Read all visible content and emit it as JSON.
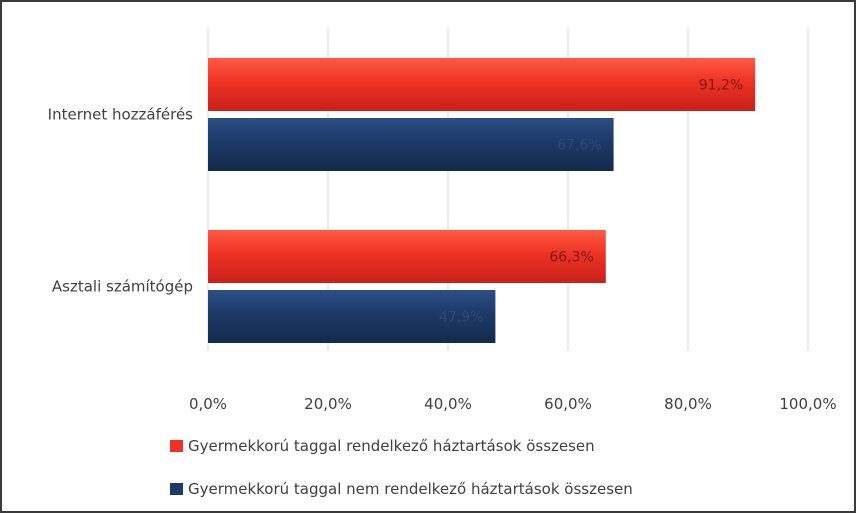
{
  "chart_data": {
    "type": "bar",
    "orientation": "horizontal",
    "categories": [
      "Internet hozzáférés",
      "Asztali számítógép"
    ],
    "series": [
      {
        "name": "Gyermekkorú taggal rendelkező háztartások összesen",
        "values": [
          91.2,
          66.3
        ],
        "labels": [
          "91,2%",
          "66,3%"
        ],
        "color": "#ee3224",
        "label_color": "#7a1a12"
      },
      {
        "name": "Gyermekkorú taggal nem rendelkező háztartások összesen",
        "values": [
          67.6,
          47.9
        ],
        "labels": [
          "67,6%",
          "47,9%"
        ],
        "color": "#1c3a68",
        "label_color": "#2c4a78"
      }
    ],
    "xlim": [
      0,
      100
    ],
    "xticks": [
      0,
      20,
      40,
      60,
      80,
      100
    ],
    "xtick_labels": [
      "0,0%",
      "20,0%",
      "40,0%",
      "60,0%",
      "80,0%",
      "100,0%"
    ],
    "grid": true,
    "legend_position": "bottom"
  }
}
